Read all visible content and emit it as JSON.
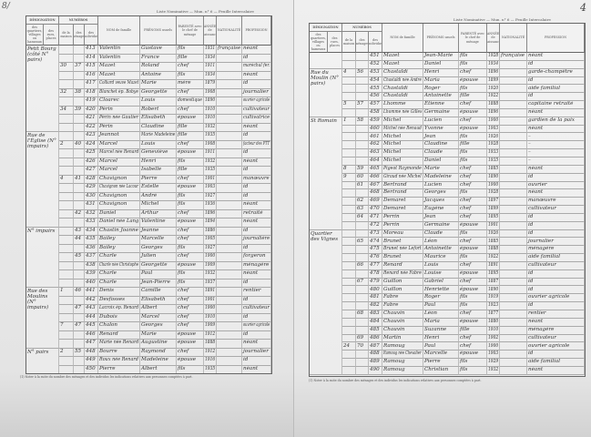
{
  "header": {
    "title_line": "Liste Nominative — Mun. n° 6 — Feuille Intercalaire",
    "page_number": "4",
    "corner_mark": "8/"
  },
  "columns": {
    "designation": "DÉSIGNATION",
    "quartier": "des quartiers, villages ou hameaux",
    "rue": "des rues, places",
    "numeros": "NUMÉROS",
    "maison": "de la maison",
    "menage": "des ménages",
    "individu": "des individus",
    "nom": "NOM de famille",
    "prenom": "PRÉNOMS usuels",
    "parente": "PARENTÉ avec le chef de ménage",
    "annee": "ANNÉE de naissance",
    "nationalite": "NATIONALITÉ",
    "profession": "PROFESSION"
  },
  "footnote": "(1) Noter à la suite du nombre des ménages et des individus les indications relatives aux personnes comptées à part.",
  "left_rows": [
    [
      "Petit Bourg (côté N° pairs)",
      "",
      "",
      "413",
      "Valentin",
      "Gustave",
      "fils",
      "1931",
      "française",
      "néant"
    ],
    [
      "",
      "",
      "",
      "414",
      "Valentin",
      "France",
      "fille",
      "1934",
      "",
      "id"
    ],
    [
      "",
      "30",
      "37",
      "415",
      "Mazet",
      "Roland",
      "chef",
      "1911",
      "",
      "maréchal fer."
    ],
    [
      "",
      "",
      "",
      "416",
      "Mazet",
      "Antoine",
      "fils",
      "1934",
      "",
      "néant"
    ],
    [
      "",
      "",
      "",
      "417",
      "Colliard veuve Mazet",
      "Marie",
      "mère",
      "1879",
      "",
      "id"
    ],
    [
      "",
      "32",
      "38",
      "418",
      "Blanchet ép. Bobye",
      "Georgette",
      "chef",
      "1908",
      "",
      "journalier"
    ],
    [
      "",
      "",
      "",
      "419",
      "Cloarec",
      "Louis",
      "domestique",
      "1890",
      "",
      "ouvrier agricole"
    ],
    [
      "",
      "34",
      "39",
      "420",
      "Périn",
      "Robert",
      "chef",
      "1910",
      "",
      "cultivateur"
    ],
    [
      "",
      "",
      "",
      "421",
      "Périn née Gautier",
      "Elisabeth",
      "épouse",
      "1910",
      "",
      "cultivatrice"
    ],
    [
      "",
      "",
      "",
      "422",
      "Périn",
      "Claudine",
      "fille",
      "1932",
      "",
      "néant"
    ],
    [
      "Rue de l'Église (N° impairs)",
      "",
      "",
      "423",
      "Jeannot",
      "Marie Madeleine",
      "fille",
      "1935",
      "",
      "id"
    ],
    [
      "",
      "2",
      "40",
      "424",
      "Marcel",
      "Louis",
      "chef",
      "1908",
      "",
      "facteur des PTT"
    ],
    [
      "",
      "",
      "",
      "425",
      "Marcel née Renard",
      "Geneviève",
      "épouse",
      "1911",
      "",
      "id"
    ],
    [
      "",
      "",
      "",
      "426",
      "Marcel",
      "Henri",
      "fils",
      "1932",
      "",
      "néant"
    ],
    [
      "",
      "",
      "",
      "427",
      "Marcel",
      "Isabelle",
      "fille",
      "1935",
      "",
      "id"
    ],
    [
      "",
      "4",
      "41",
      "428",
      "Chavignon",
      "Pierre",
      "chef",
      "1901",
      "",
      "manœuvre"
    ],
    [
      "",
      "",
      "",
      "429",
      "Chavignon née Lacour",
      "Estelle",
      "épouse",
      "1903",
      "",
      "id"
    ],
    [
      "",
      "",
      "",
      "430",
      "Chavignon",
      "André",
      "fils",
      "1927",
      "",
      "id"
    ],
    [
      "",
      "",
      "",
      "431",
      "Chavignon",
      "Michel",
      "fils",
      "1936",
      "",
      "néant"
    ],
    [
      "",
      "",
      "42",
      "432",
      "Daniel",
      "Arthur",
      "chef",
      "1896",
      "",
      "retraité"
    ],
    [
      "",
      "",
      "",
      "433",
      "Daniel née Lang",
      "Valentine",
      "épouse",
      "1894",
      "",
      "néant"
    ],
    [
      "N° impairs",
      "",
      "43",
      "434",
      "Chastin Joanne",
      "Jeanne",
      "chef",
      "1886",
      "",
      "id"
    ],
    [
      "",
      "",
      "44",
      "435",
      "Bailey",
      "Marcelle",
      "chef",
      "1905",
      "",
      "journalière"
    ],
    [
      "",
      "",
      "",
      "436",
      "Bailey",
      "Georges",
      "fils",
      "1927",
      "",
      "id"
    ],
    [
      "",
      "",
      "45",
      "437",
      "Charle",
      "Julien",
      "chef",
      "1900",
      "",
      "forgeron"
    ],
    [
      "",
      "",
      "",
      "438",
      "Charle née Christophe",
      "Georgette",
      "épouse",
      "1909",
      "",
      "ménagère"
    ],
    [
      "",
      "",
      "",
      "439",
      "Charle",
      "Paul",
      "fils",
      "1932",
      "",
      "néant"
    ],
    [
      "",
      "",
      "",
      "440",
      "Charle",
      "Jean-Pierre",
      "fils",
      "1937",
      "",
      "id"
    ],
    [
      "Rue des Moulins (N° impairs)",
      "1",
      "46",
      "441",
      "Denis",
      "Camille",
      "chef",
      "1891",
      "",
      "rentier"
    ],
    [
      "",
      "",
      "",
      "442",
      "Desfosses",
      "Elisabeth",
      "chef",
      "1901",
      "",
      "id"
    ],
    [
      "",
      "",
      "47",
      "443",
      "Lacroix ép. Renard",
      "Albert",
      "chef",
      "1900",
      "",
      "cultivateur"
    ],
    [
      "",
      "",
      "",
      "444",
      "Dubois",
      "Marcel",
      "chef",
      "1910",
      "",
      "id"
    ],
    [
      "",
      "7",
      "47",
      "445",
      "Chalon",
      "Georges",
      "chef",
      "1909",
      "",
      "ouvrier agricole"
    ],
    [
      "",
      "",
      "",
      "446",
      "Renard",
      "Marie",
      "épouse",
      "1912",
      "",
      "id"
    ],
    [
      "",
      "",
      "",
      "447",
      "Marie née Renard",
      "Augustine",
      "épouse",
      "1888",
      "",
      "néant"
    ],
    [
      "N° pairs",
      "2",
      "55",
      "448",
      "Bourre",
      "Raymond",
      "chef",
      "1912",
      "",
      "journalier"
    ],
    [
      "",
      "",
      "",
      "449",
      "Roux née Renard",
      "Madeleine",
      "épouse",
      "1916",
      "",
      "id"
    ],
    [
      "",
      "",
      "",
      "450",
      "Pierre",
      "Albert",
      "fils",
      "1935",
      "",
      "néant"
    ]
  ],
  "right_rows": [
    [
      "",
      "",
      "",
      "451",
      "Mazet",
      "Jean-Marie",
      "fils",
      "1928",
      "française",
      "néant"
    ],
    [
      "",
      "",
      "",
      "452",
      "Mazet",
      "Daniel",
      "fils",
      "1934",
      "",
      "id"
    ],
    [
      "Rue du Moulin (N° pairs)",
      "4",
      "56",
      "453",
      "Chastaldi",
      "Henri",
      "chef",
      "1896",
      "",
      "garde-champêtre"
    ],
    [
      "",
      "",
      "",
      "454",
      "Chastaldi née André",
      "Maria",
      "épouse",
      "1899",
      "",
      "id"
    ],
    [
      "",
      "",
      "",
      "455",
      "Chastaldi",
      "Roger",
      "fils",
      "1920",
      "",
      "aide familial"
    ],
    [
      "",
      "",
      "",
      "456",
      "Chastaldi",
      "Antoinette",
      "fille",
      "1922",
      "",
      "id"
    ],
    [
      "",
      "5",
      "57",
      "457",
      "Lhomme",
      "Etienne",
      "chef",
      "1888",
      "",
      "capitaine retraité"
    ],
    [
      "",
      "",
      "",
      "458",
      "Lhomme née Gilles",
      "Germaine",
      "épouse",
      "1896",
      "",
      "néant"
    ],
    [
      "St Romain",
      "1",
      "58",
      "459",
      "Michel",
      "Lucien",
      "chef",
      "1900",
      "",
      "gardien de la paix"
    ],
    [
      "",
      "",
      "",
      "460",
      "Michel née Renaud",
      "Yvonne",
      "épouse",
      "1903",
      "",
      "néant"
    ],
    [
      "",
      "",
      "",
      "461",
      "Michel",
      "Jean",
      "fils",
      "1926",
      "",
      "–"
    ],
    [
      "",
      "",
      "",
      "462",
      "Michel",
      "Claudine",
      "fille",
      "1928",
      "",
      "–"
    ],
    [
      "",
      "",
      "",
      "463",
      "Michel",
      "Claude",
      "fils",
      "1933",
      "",
      "–"
    ],
    [
      "",
      "",
      "",
      "464",
      "Michel",
      "Daniel",
      "fils",
      "1935",
      "",
      "–"
    ],
    [
      "",
      "8",
      "59",
      "465",
      "Pigeot Raymonde",
      "Marie",
      "chef",
      "1885",
      "",
      "néant"
    ],
    [
      "",
      "9",
      "60",
      "466",
      "Giraud née Michel",
      "Madeleine",
      "chef",
      "1890",
      "",
      "id"
    ],
    [
      "",
      "",
      "61",
      "467",
      "Bertrand",
      "Lucien",
      "chef",
      "1900",
      "",
      "ouvrier"
    ],
    [
      "",
      "",
      "",
      "468",
      "Bertrand",
      "Georges",
      "fils",
      "1928",
      "",
      "néant"
    ],
    [
      "",
      "",
      "62",
      "469",
      "Demaret",
      "Jacques",
      "chef",
      "1897",
      "",
      "manœuvre"
    ],
    [
      "",
      "",
      "63",
      "470",
      "Demaret",
      "Eugène",
      "chef",
      "1899",
      "",
      "cultivateur"
    ],
    [
      "",
      "",
      "64",
      "471",
      "Perrin",
      "Jean",
      "chef",
      "1895",
      "",
      "id"
    ],
    [
      "",
      "",
      "",
      "472",
      "Perrin",
      "Germaine",
      "épouse",
      "1901",
      "",
      "id"
    ],
    [
      "Quartier des Vignes",
      "",
      "",
      "473",
      "Moreau",
      "Claude",
      "fils",
      "1926",
      "",
      "id"
    ],
    [
      "",
      "",
      "65",
      "474",
      "Brunet",
      "Léon",
      "chef",
      "1885",
      "",
      "journalier"
    ],
    [
      "",
      "",
      "",
      "475",
      "Brunet née Lefort",
      "Antoinette",
      "épouse",
      "1888",
      "",
      "ménagère"
    ],
    [
      "",
      "",
      "",
      "476",
      "Brunet",
      "Maurice",
      "fils",
      "1922",
      "",
      "aide familial"
    ],
    [
      "",
      "",
      "66",
      "477",
      "Renard",
      "Louis",
      "chef",
      "1891",
      "",
      "cultivateur"
    ],
    [
      "",
      "",
      "",
      "478",
      "Renard née Fabre",
      "Louise",
      "épouse",
      "1895",
      "",
      "id"
    ],
    [
      "",
      "",
      "67",
      "479",
      "Guillon",
      "Gabriel",
      "chef",
      "1887",
      "",
      "id"
    ],
    [
      "",
      "",
      "",
      "480",
      "Guillon",
      "Henriette",
      "épouse",
      "1890",
      "",
      "id"
    ],
    [
      "",
      "",
      "",
      "481",
      "Fabre",
      "Roger",
      "fils",
      "1919",
      "",
      "ouvrier agricole"
    ],
    [
      "",
      "",
      "",
      "482",
      "Fabre",
      "Paul",
      "fils",
      "1923",
      "",
      "id"
    ],
    [
      "",
      "",
      "68",
      "483",
      "Chauvin",
      "Léon",
      "chef",
      "1877",
      "",
      "rentier"
    ],
    [
      "",
      "",
      "",
      "484",
      "Chauvin",
      "Maria",
      "épouse",
      "1880",
      "",
      "néant"
    ],
    [
      "",
      "",
      "",
      "485",
      "Chauvin",
      "Suzanne",
      "fille",
      "1910",
      "",
      "ménagère"
    ],
    [
      "",
      "",
      "69",
      "486",
      "Martin",
      "Henri",
      "chef",
      "1902",
      "",
      "cultivateur"
    ],
    [
      "",
      "24",
      "70",
      "487",
      "Ramoug",
      "Paul",
      "chef",
      "1900",
      "",
      "ouvrier agricole"
    ],
    [
      "",
      "",
      "",
      "488",
      "Ramoug née Chevalier",
      "Marcelle",
      "épouse",
      "1903",
      "",
      "id"
    ],
    [
      "",
      "",
      "",
      "489",
      "Ramoug",
      "Pierre",
      "fils",
      "1929",
      "",
      "aide familial"
    ],
    [
      "",
      "",
      "",
      "490",
      "Ramoug",
      "Christian",
      "fils",
      "1932",
      "",
      "néant"
    ]
  ]
}
